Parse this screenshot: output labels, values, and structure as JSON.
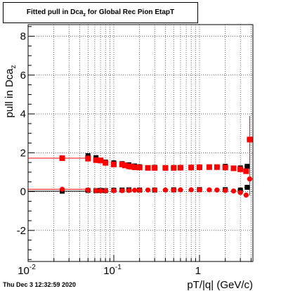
{
  "title": "Fitted pull in Dca",
  "title_sub": "z",
  "title_rest": " for Global Rec Pion EtapT",
  "timestamp": "Thu Dec  3 12:32:59 2020",
  "colors": {
    "series_black": "#000000",
    "series_red": "#ff0000",
    "grid": "#000000"
  },
  "chart_data": {
    "type": "scatter",
    "xlabel": "pT/|q| (GeV/c)",
    "ylabel": "pull in Dca",
    "ylabel_sub": "z",
    "xscale": "log",
    "xlim": [
      0.01,
      4.2
    ],
    "ylim": [
      -3.6,
      8.6
    ],
    "grid": true,
    "y_ticks": [
      "8",
      "6",
      "4",
      "2",
      "0",
      "-2"
    ],
    "x_tick_labels": [
      "10",
      "10",
      "1"
    ],
    "x_tick_exponents": [
      "-2",
      "-1",
      ""
    ],
    "series": [
      {
        "marker": "square",
        "color": "#000000",
        "points": [
          [
            0.025,
            1.72
          ],
          [
            0.05,
            1.85
          ],
          [
            0.062,
            1.75
          ],
          [
            0.07,
            1.62
          ],
          [
            0.08,
            1.52
          ],
          [
            0.1,
            1.48
          ],
          [
            0.125,
            1.44
          ],
          [
            0.15,
            1.38
          ],
          [
            0.175,
            1.32
          ],
          [
            0.2,
            1.28
          ],
          [
            0.3,
            1.25
          ],
          [
            0.5,
            1.24
          ],
          [
            1.0,
            1.27
          ],
          [
            2.0,
            1.3
          ],
          [
            3.0,
            1.22
          ],
          [
            3.6,
            1.3
          ]
        ]
      },
      {
        "marker": "square",
        "color": "#000000",
        "points": [
          [
            0.025,
            0.02
          ],
          [
            0.05,
            0.06
          ],
          [
            0.062,
            0.05
          ],
          [
            0.07,
            0.06
          ],
          [
            0.08,
            0.05
          ],
          [
            0.1,
            0.07
          ],
          [
            0.125,
            0.08
          ],
          [
            0.15,
            0.09
          ],
          [
            0.2,
            0.08
          ],
          [
            0.3,
            0.08
          ],
          [
            0.5,
            0.09
          ],
          [
            1.0,
            0.1
          ],
          [
            2.0,
            0.1
          ],
          [
            3.0,
            0.08
          ],
          [
            3.6,
            0.22
          ]
        ]
      },
      {
        "marker": "square",
        "color": "#ff0000",
        "points": [
          [
            0.025,
            1.72
          ],
          [
            0.05,
            1.7
          ],
          [
            0.062,
            1.62
          ],
          [
            0.07,
            1.6
          ],
          [
            0.08,
            1.48
          ],
          [
            0.1,
            1.4
          ],
          [
            0.125,
            1.4
          ],
          [
            0.135,
            1.35
          ],
          [
            0.15,
            1.3
          ],
          [
            0.16,
            1.28
          ],
          [
            0.175,
            1.25
          ],
          [
            0.2,
            1.24
          ],
          [
            0.25,
            1.22
          ],
          [
            0.3,
            1.22
          ],
          [
            0.4,
            1.22
          ],
          [
            0.5,
            1.22
          ],
          [
            0.6,
            1.23
          ],
          [
            0.8,
            1.24
          ],
          [
            1.0,
            1.25
          ],
          [
            1.3,
            1.26
          ],
          [
            1.6,
            1.26
          ],
          [
            2.0,
            1.24
          ],
          [
            2.5,
            1.2
          ],
          [
            3.0,
            1.15
          ],
          [
            3.5,
            1.05
          ],
          [
            3.85,
            2.68
          ]
        ]
      },
      {
        "marker": "circle",
        "color": "#ff0000",
        "points": [
          [
            0.025,
            0.12
          ],
          [
            0.05,
            0.08
          ],
          [
            0.062,
            0.05
          ],
          [
            0.07,
            0.04
          ],
          [
            0.08,
            0.04
          ],
          [
            0.1,
            0.05
          ],
          [
            0.125,
            0.05
          ],
          [
            0.15,
            0.06
          ],
          [
            0.175,
            0.07
          ],
          [
            0.2,
            0.07
          ],
          [
            0.25,
            0.08
          ],
          [
            0.3,
            0.08
          ],
          [
            0.4,
            0.08
          ],
          [
            0.5,
            0.08
          ],
          [
            0.6,
            0.09
          ],
          [
            0.8,
            0.09
          ],
          [
            1.0,
            0.09
          ],
          [
            1.3,
            0.09
          ],
          [
            1.6,
            0.08
          ],
          [
            2.0,
            0.06
          ],
          [
            2.5,
            0.03
          ],
          [
            3.0,
            -0.05
          ],
          [
            3.5,
            -0.18
          ],
          [
            3.85,
            0.65
          ]
        ]
      }
    ]
  }
}
